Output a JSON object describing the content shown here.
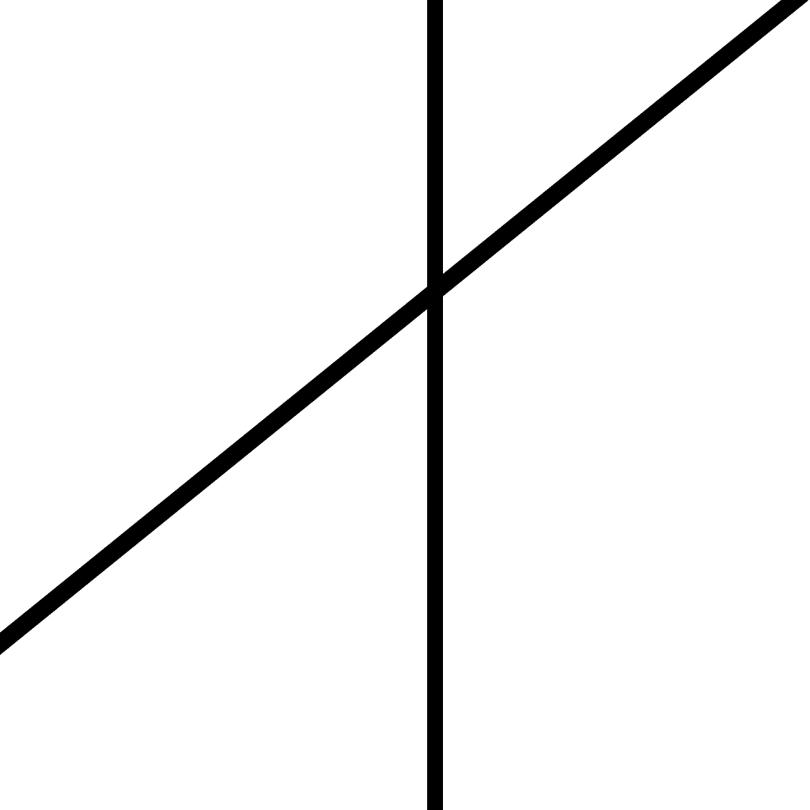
{
  "figure": {
    "background_color": "#ffffff",
    "stroke_color": "#000000",
    "elements": [
      {
        "kind": "vertical-line",
        "label": ""
      },
      {
        "kind": "diagonal-line",
        "label": ""
      }
    ]
  }
}
